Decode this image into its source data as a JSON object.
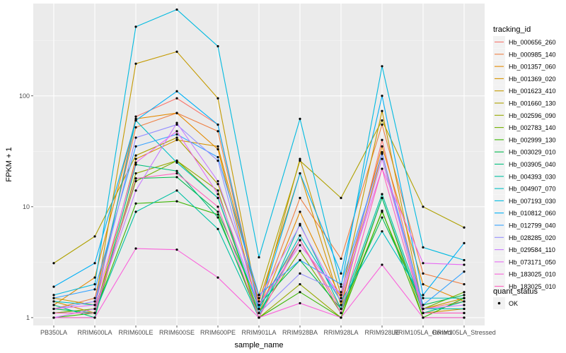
{
  "chart_data": {
    "type": "line",
    "log_scale_y": true,
    "xlabel": "sample_name",
    "ylabel": "FPKM + 1",
    "categories": [
      "PB350LA",
      "RRIM600LA",
      "RRIM600LE",
      "RRIM600SE",
      "RRIM600PE",
      "RRIM901LA",
      "RRIM928BA",
      "RRIM928LA",
      "RRIM928LE",
      "RRIM105LA_Control",
      "RRIM105LA_Stressed"
    ],
    "y_ticks": [
      1,
      10,
      100
    ],
    "y_tick_labels": [
      "1",
      "10",
      "100"
    ],
    "ylim": [
      0.85,
      680
    ],
    "grid": true,
    "legend_position": "right",
    "legend_title": "tracking_id",
    "series": [
      {
        "name": "Hb_000656_260",
        "color": "#F8766D",
        "values": [
          1.1,
          1.2,
          65,
          95,
          55,
          1.3,
          5.0,
          1.2,
          40,
          1.2,
          1.4
        ]
      },
      {
        "name": "Hb_000985_140",
        "color": "#EE8044",
        "values": [
          1.2,
          1.5,
          52,
          70,
          48,
          1.2,
          12,
          3.4,
          55,
          2.5,
          2.0
        ]
      },
      {
        "name": "Hb_001357_060",
        "color": "#E38900",
        "values": [
          1.3,
          2.3,
          62,
          70,
          33,
          1.1,
          9.0,
          1.5,
          35,
          2.0,
          1.4
        ]
      },
      {
        "name": "Hb_001369_020",
        "color": "#D59200",
        "values": [
          1.4,
          1.1,
          27,
          40,
          35,
          1.4,
          20,
          1.3,
          30,
          1.1,
          1.2
        ]
      },
      {
        "name": "Hb_001623_410",
        "color": "#C49A00",
        "values": [
          1.5,
          1.3,
          195,
          250,
          95,
          1.2,
          27,
          1.6,
          73,
          1.2,
          1.5
        ]
      },
      {
        "name": "Hb_001660_130",
        "color": "#AFA100",
        "values": [
          3.1,
          5.4,
          29,
          42,
          16,
          1.6,
          26,
          12,
          60,
          10,
          6.5
        ]
      },
      {
        "name": "Hb_002596_090",
        "color": "#96A800",
        "values": [
          1.0,
          1.0,
          20,
          26,
          14,
          1.0,
          2.0,
          1.0,
          12,
          1.0,
          1.0
        ]
      },
      {
        "name": "Hb_002783_140",
        "color": "#72B000",
        "values": [
          1.1,
          1.2,
          17,
          26,
          12,
          1.1,
          4.0,
          1.1,
          9.0,
          1.2,
          1.7
        ]
      },
      {
        "name": "Hb_002999_130",
        "color": "#39B600",
        "values": [
          1.0,
          1.1,
          10.7,
          11.2,
          8.5,
          1.0,
          1.7,
          1.0,
          9.2,
          1.0,
          1.5
        ]
      },
      {
        "name": "Hb_003029_010",
        "color": "#00BB4E",
        "values": [
          1.2,
          1.1,
          18,
          18.5,
          9.0,
          1.3,
          3.3,
          1.2,
          8.0,
          1.3,
          1.6
        ]
      },
      {
        "name": "Hb_003905_040",
        "color": "#00BF7D",
        "values": [
          1.3,
          1.0,
          24,
          21,
          8.0,
          1.1,
          5.0,
          1.1,
          12,
          1.1,
          1.4
        ]
      },
      {
        "name": "Hb_004393_030",
        "color": "#00C1A3",
        "values": [
          1.1,
          1.1,
          9.0,
          14,
          6.3,
          1.0,
          7.0,
          1.2,
          13,
          1.2,
          1.2
        ]
      },
      {
        "name": "Hb_004907_070",
        "color": "#00BFC4",
        "values": [
          1.4,
          1.3,
          60,
          25,
          12,
          1.2,
          5.5,
          1.4,
          6.0,
          1.5,
          1.5
        ]
      },
      {
        "name": "Hb_007193_030",
        "color": "#00BAE0",
        "values": [
          1.6,
          2.0,
          420,
          600,
          280,
          3.5,
          62,
          1.9,
          185,
          4.3,
          3.3
        ]
      },
      {
        "name": "Hb_010812_060",
        "color": "#00B0F6",
        "values": [
          1.9,
          3.1,
          60,
          110,
          55,
          1.2,
          20,
          2.5,
          100,
          1.6,
          4.7
        ]
      },
      {
        "name": "Hb_012799_040",
        "color": "#35A2FF",
        "values": [
          1.5,
          1.8,
          35,
          45,
          28,
          1.6,
          3.3,
          2.0,
          30,
          1.3,
          2.6
        ]
      },
      {
        "name": "Hb_028285_020",
        "color": "#9590FF",
        "values": [
          1.2,
          1.4,
          42,
          55,
          26,
          1.1,
          2.5,
          1.7,
          31,
          1.1,
          1.1
        ]
      },
      {
        "name": "Hb_029584_110",
        "color": "#C77CFF",
        "values": [
          1.0,
          1.2,
          14,
          57,
          17,
          1.5,
          6.8,
          1.4,
          27,
          1.2,
          1.3
        ]
      },
      {
        "name": "Hb_073171_050",
        "color": "#E76BF3",
        "values": [
          1.2,
          1.3,
          25,
          48,
          13,
          1.3,
          4.5,
          1.6,
          22,
          3.1,
          3.0
        ]
      },
      {
        "name": "Hb_183025_010",
        "color": "#FA62DB",
        "values": [
          1.0,
          1.0,
          4.2,
          4.1,
          2.3,
          1.0,
          1.35,
          1.0,
          3.0,
          1.0,
          1.0
        ]
      },
      {
        "name": "Hb_183025_010",
        "color": "#FF62BC",
        "values": [
          1.1,
          1.1,
          18,
          20,
          10,
          1.0,
          5.0,
          1.1,
          22,
          1.1,
          1.1
        ]
      }
    ],
    "shape_legend": {
      "title": "quant_status",
      "items": [
        {
          "label": "OK"
        }
      ]
    }
  }
}
